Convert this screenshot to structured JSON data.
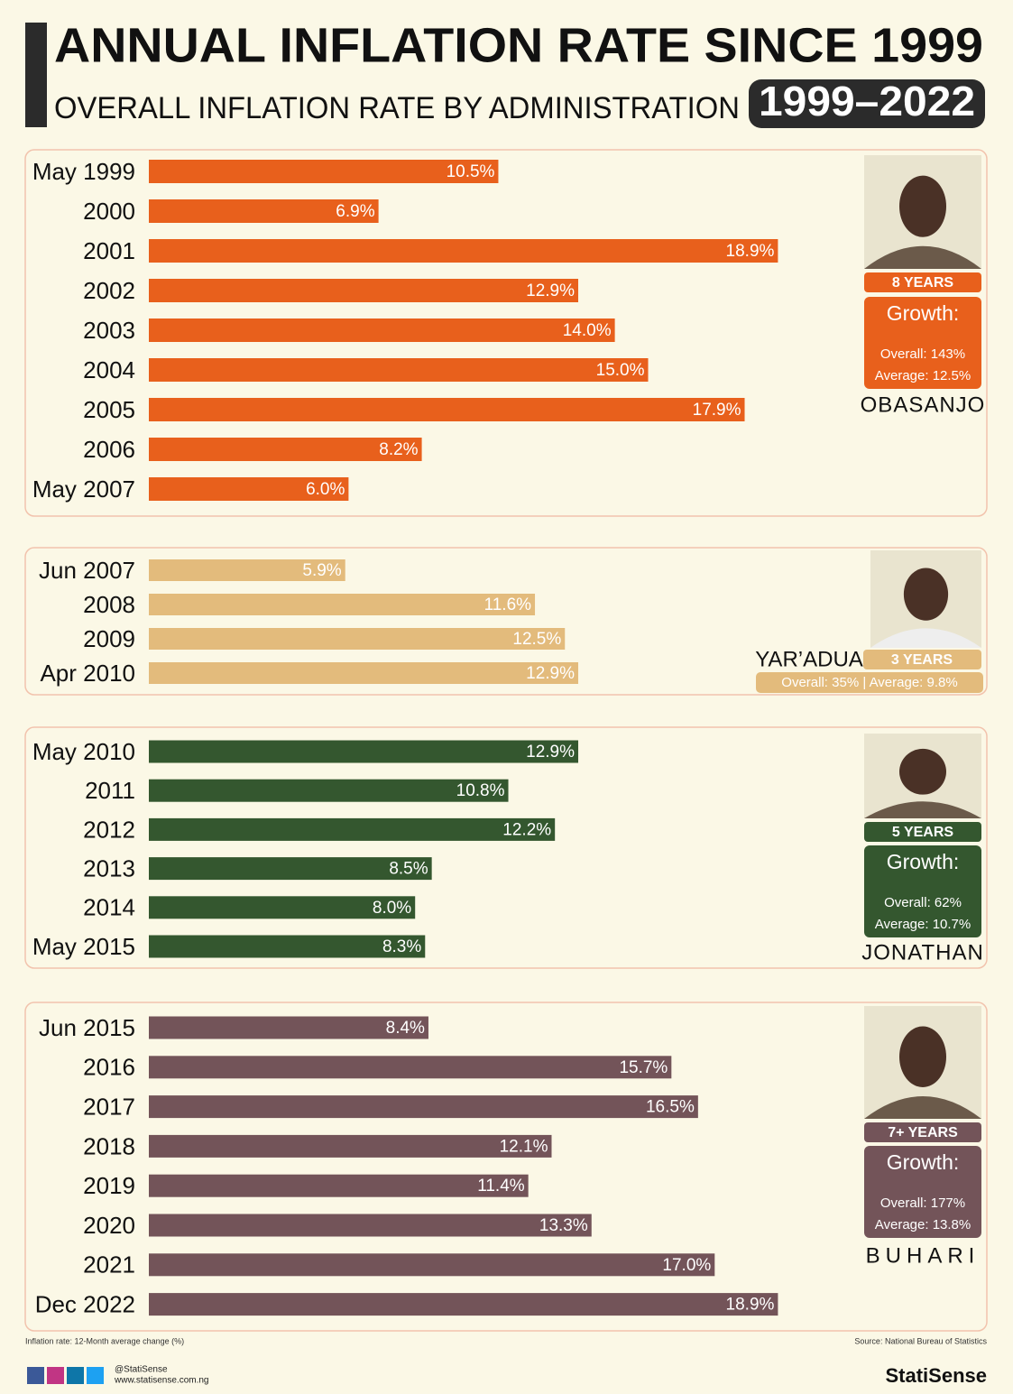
{
  "title": "ANNUAL INFLATION RATE SINCE 1999",
  "subtitle": "OVERALL INFLATION RATE BY ADMINISTRATION",
  "period": "1999–2022",
  "chart_data": [
    {
      "type": "bar",
      "orientation": "horizontal",
      "color": "#e8601c",
      "categories": [
        "May 1999",
        "2000",
        "2001",
        "2002",
        "2003",
        "2004",
        "2005",
        "2006",
        "May 2007"
      ],
      "values": [
        10.5,
        6.9,
        18.9,
        12.9,
        14.0,
        15.0,
        17.9,
        8.2,
        6.0
      ],
      "value_labels": [
        "10.5%",
        "6.9%",
        "18.9%",
        "12.9%",
        "14.0%",
        "15.0%",
        "17.9%",
        "8.2%",
        "6.0%"
      ],
      "name": "OBASANJO",
      "years": "8 YEARS",
      "growth": "Growth:",
      "overall": "Overall: 143%",
      "average": "Average: 12.5%"
    },
    {
      "type": "bar",
      "orientation": "horizontal",
      "color": "#e3bb7c",
      "categories": [
        "Jun 2007",
        "2008",
        "2009",
        "Apr 2010"
      ],
      "values": [
        5.9,
        11.6,
        12.5,
        12.9
      ],
      "value_labels": [
        "5.9%",
        "11.6%",
        "12.5%",
        "12.9%"
      ],
      "name": "YAR’ADUA",
      "years": "3 YEARS",
      "summary": "Overall: 35% | Average: 9.8%"
    },
    {
      "type": "bar",
      "orientation": "horizontal",
      "color": "#34572f",
      "categories": [
        "May 2010",
        "2011",
        "2012",
        "2013",
        "2014",
        "May 2015"
      ],
      "values": [
        12.9,
        10.8,
        12.2,
        8.5,
        8.0,
        8.3
      ],
      "value_labels": [
        "12.9%",
        "10.8%",
        "12.2%",
        "8.5%",
        "8.0%",
        "8.3%"
      ],
      "name": "JONATHAN",
      "years": "5 YEARS",
      "growth": "Growth:",
      "overall": "Overall: 62%",
      "average": "Average: 10.7%"
    },
    {
      "type": "bar",
      "orientation": "horizontal",
      "color": "#735459",
      "categories": [
        "Jun 2015",
        "2016",
        "2017",
        "2018",
        "2019",
        "2020",
        "2021",
        "Dec 2022"
      ],
      "values": [
        8.4,
        15.7,
        16.5,
        12.1,
        11.4,
        13.3,
        17.0,
        18.9
      ],
      "value_labels": [
        "8.4%",
        "15.7%",
        "16.5%",
        "12.1%",
        "11.4%",
        "13.3%",
        "17.0%",
        "18.9%"
      ],
      "name": "BUHARI",
      "years": "7+ YEARS",
      "growth": "Growth:",
      "overall": "Overall: 177%",
      "average": "Average: 13.8%"
    }
  ],
  "footer": {
    "note": "Inflation rate: 12-Month average change (%)",
    "source": "Source: National Bureau of Statistics",
    "handle": "@StatiSense",
    "website": "www.statisense.com.ng",
    "brand": "StatiSense"
  }
}
